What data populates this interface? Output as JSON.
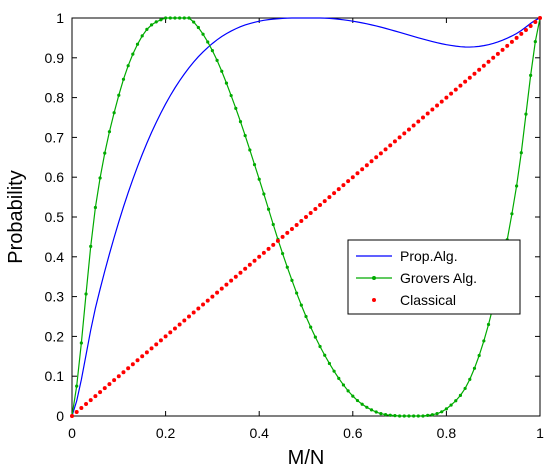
{
  "chart_data": {
    "type": "line",
    "title": "",
    "xlabel": "M/N",
    "ylabel": "Probability",
    "xlim": [
      0,
      1
    ],
    "ylim": [
      0,
      1
    ],
    "grid": false,
    "legend_position": "center-right",
    "x_ticks": [
      "0",
      "0.2",
      "0.4",
      "0.6",
      "0.8",
      "1"
    ],
    "y_ticks": [
      "0",
      "0.1",
      "0.2",
      "0.3",
      "0.4",
      "0.5",
      "0.6",
      "0.7",
      "0.8",
      "0.9",
      "1"
    ],
    "x": [
      0,
      0.05,
      0.1,
      0.15,
      0.2,
      0.25,
      0.3,
      0.35,
      0.4,
      0.45,
      0.5,
      0.55,
      0.6,
      0.65,
      0.7,
      0.75,
      0.8,
      0.85,
      0.9,
      0.95,
      1
    ],
    "series": [
      {
        "name": "Prop.Alg.",
        "color": "#0000ff",
        "style": "line",
        "values": [
          0,
          0.271,
          0.488,
          0.657,
          0.784,
          0.875,
          0.936,
          0.973,
          0.992,
          0.999,
          1.0,
          0.999,
          0.992,
          0.98,
          0.964,
          0.947,
          0.933,
          0.927,
          0.936,
          0.961,
          1.0
        ]
      },
      {
        "name": "Grovers Alg.",
        "color": "#00aa00",
        "style": "line-marker",
        "values": [
          0,
          0.524,
          0.806,
          0.955,
          1.0,
          1.0,
          0.918,
          0.773,
          0.595,
          0.408,
          0.25,
          0.132,
          0.05,
          0.01,
          0.0,
          0.0,
          0.018,
          0.092,
          0.276,
          0.578,
          1.0
        ]
      },
      {
        "name": "Classical",
        "color": "#ff0000",
        "style": "dots",
        "values": [
          0,
          0.05,
          0.1,
          0.15,
          0.2,
          0.25,
          0.3,
          0.35,
          0.4,
          0.45,
          0.5,
          0.55,
          0.6,
          0.65,
          0.7,
          0.75,
          0.8,
          0.85,
          0.9,
          0.95,
          1.0
        ]
      }
    ]
  }
}
